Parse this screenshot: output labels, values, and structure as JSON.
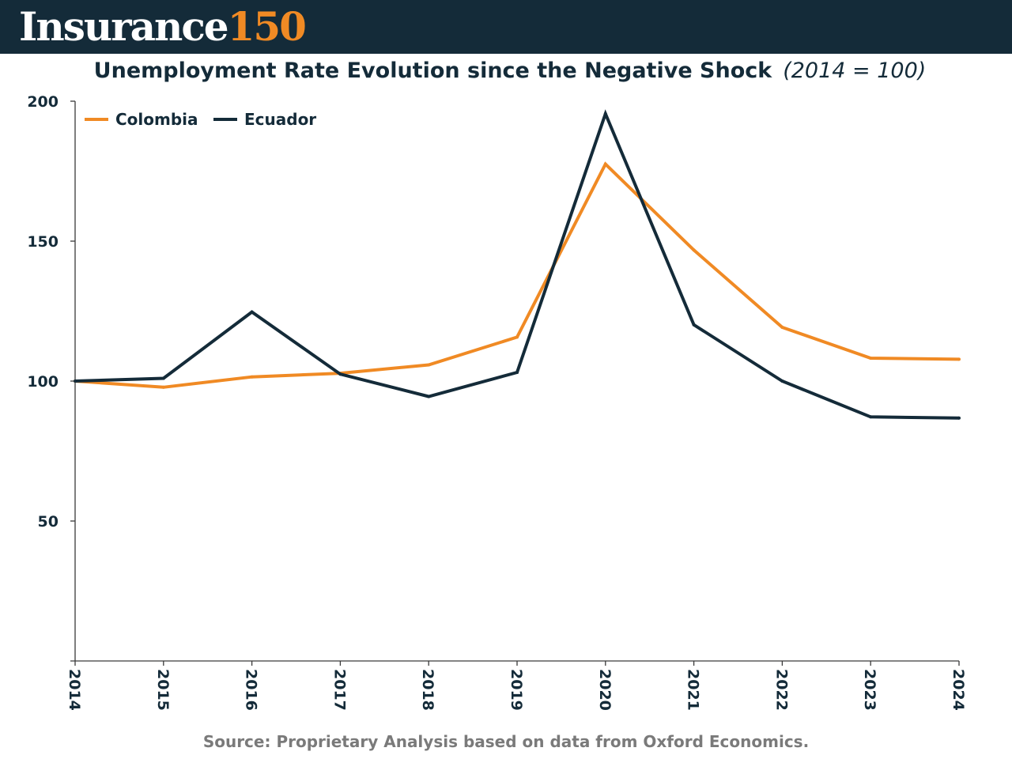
{
  "header": {
    "logo_word": "Insurance",
    "logo_number": "150",
    "bg_color": "#142b39",
    "accent_color": "#f08a24"
  },
  "title": {
    "main": "Unemployment Rate Evolution since the Negative Shock",
    "subtitle": "(2014 = 100)"
  },
  "source": "Source: Proprietary Analysis based on data from Oxford Economics.",
  "chart_data": {
    "type": "line",
    "title": "Unemployment Rate Evolution since the Negative Shock",
    "subtitle": "(2014 = 100)",
    "xlabel": "",
    "ylabel": "",
    "x": [
      "2014",
      "2015",
      "2016",
      "2017",
      "2018",
      "2019",
      "2020",
      "2021",
      "2022",
      "2023",
      "2024"
    ],
    "ylim": [
      0,
      200
    ],
    "yticks": [
      "50",
      "100",
      "150",
      "200"
    ],
    "grid": false,
    "legend_position": "top-left",
    "series": [
      {
        "name": "Colombia",
        "color": "#f08a24",
        "values": [
          100,
          97.8,
          101.5,
          102.8,
          105.8,
          115.7,
          177.5,
          146.8,
          119.2,
          108.2,
          107.8
        ]
      },
      {
        "name": "Ecuador",
        "color": "#142b39",
        "values": [
          100,
          101.0,
          124.7,
          102.5,
          94.5,
          103.1,
          195.5,
          120.1,
          100.0,
          87.2,
          86.8
        ]
      }
    ]
  }
}
